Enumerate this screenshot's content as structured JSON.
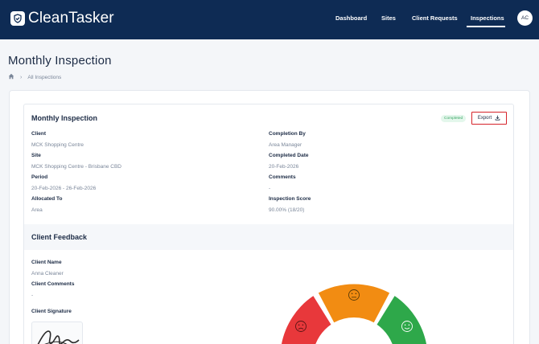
{
  "app": {
    "name": "CleanTasker",
    "brand_color": "#0e2b54"
  },
  "nav": {
    "items": [
      {
        "label": "Dashboard",
        "active": false
      },
      {
        "label": "Sites",
        "active": false
      },
      {
        "label": "Client Requests",
        "active": false
      },
      {
        "label": "Inspections",
        "active": true
      }
    ],
    "avatar_initials": "AC"
  },
  "page": {
    "title": "Monthly Inspection",
    "breadcrumb": {
      "home_icon": "home-icon",
      "current": "All Inspections"
    }
  },
  "inspection": {
    "title": "Monthly Inspection",
    "status": "Completed",
    "export_label": "Export",
    "left_fields": [
      {
        "label": "Client",
        "value": "MCK Shopping Centre"
      },
      {
        "label": "Site",
        "value": "MCK Shopping Centre - Brisbane CBD"
      },
      {
        "label": "Period",
        "value": "20-Feb-2026 - 26-Feb-2026"
      },
      {
        "label": "Allocated To",
        "value": "Area"
      }
    ],
    "right_fields": [
      {
        "label": "Completion By",
        "value": "Area Manager"
      },
      {
        "label": "Completed Date",
        "value": "20-Feb-2026"
      },
      {
        "label": "Comments",
        "value": "-"
      },
      {
        "label": "Inspection Score",
        "value": "90.00% (18/20)"
      }
    ]
  },
  "feedback": {
    "title": "Client Feedback",
    "fields": [
      {
        "label": "Client Name",
        "value": "Anna Cleaner"
      },
      {
        "label": "Client Comments",
        "value": "-"
      }
    ],
    "signature_label": "Client Signature",
    "rating_colors": {
      "negative": "#e8383b",
      "neutral": "#f28c12",
      "positive": "#2ea84a"
    }
  }
}
